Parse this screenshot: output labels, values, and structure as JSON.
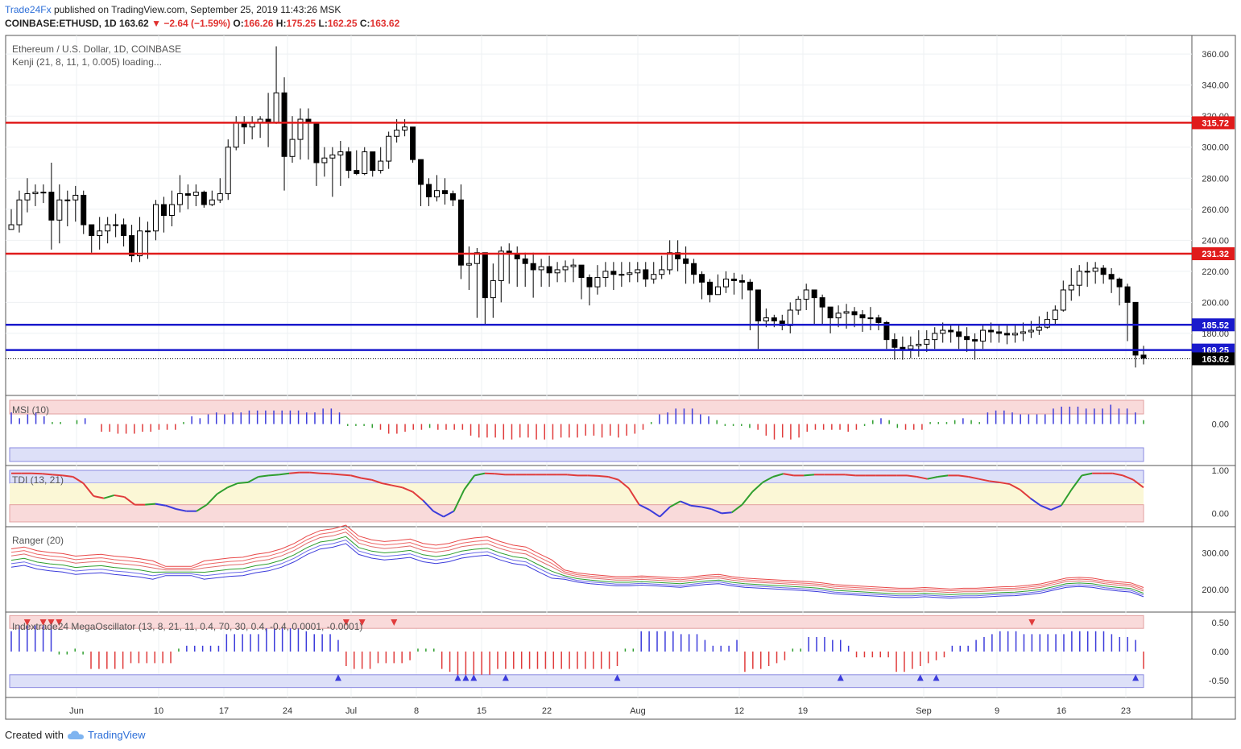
{
  "header": {
    "publisher": "Trade24Fx",
    "published_text": "published on TradingView.com, September 25, 2019 11:43:26 MSK",
    "symbol_line": "COINBASE:ETHUSD, 1D",
    "last": "163.62",
    "change": "−2.64 (−1.59%)",
    "o_label": "O:",
    "o": "166.26",
    "h_label": "H:",
    "h": "175.25",
    "l_label": "L:",
    "l": "162.25",
    "c_label": "C:",
    "c": "163.62"
  },
  "main_legend": {
    "title": "Ethereum / U.S. Dollar, 1D, COINBASE",
    "indicator": "Kenji (21, 8, 11, 1, 0.005) loading..."
  },
  "colors": {
    "red_line": "#e01b1b",
    "blue_line": "#1a1acc",
    "bull": "#ffffff",
    "bear": "#000000",
    "osc_blue": "#3b3bdb",
    "osc_red": "#e03b3b",
    "osc_green": "#2e9e2e",
    "zone_red": "#f9dada",
    "zone_blue": "#dde0f8",
    "zone_yellow": "#fbf7d6"
  },
  "footer": {
    "created_with": "Created with",
    "brand": "TradingView"
  },
  "chart_data": [
    {
      "type": "candlestick",
      "title": "Ethereum / U.S. Dollar, 1D, COINBASE",
      "y_ticks": [
        "360.00",
        "340.00",
        "320.00",
        "300.00",
        "280.00",
        "260.00",
        "240.00",
        "220.00",
        "200.00",
        "180.00"
      ],
      "ylim": [
        140,
        372
      ],
      "x_ticks": [
        "Jun",
        "10",
        "17",
        "24",
        "Jul",
        "8",
        "15",
        "22",
        "Aug",
        "12",
        "19",
        "Sep",
        "9",
        "16",
        "23"
      ],
      "levels": [
        {
          "value": 315.72,
          "label": "315.72",
          "color": "red"
        },
        {
          "value": 231.32,
          "label": "231.32",
          "color": "red"
        },
        {
          "value": 185.52,
          "label": "185.52",
          "color": "blue"
        },
        {
          "value": 169.25,
          "label": "169.25",
          "color": "blue"
        }
      ],
      "last_price": {
        "value": 163.62,
        "label": "163.62"
      },
      "series_close": [
        250,
        266,
        270,
        271,
        271,
        253,
        266,
        266,
        269,
        250,
        243,
        246,
        250,
        250,
        243,
        230,
        246,
        246,
        263,
        256,
        263,
        270,
        269,
        271,
        263,
        266,
        270,
        300,
        316,
        313,
        316,
        318,
        316,
        335,
        294,
        305,
        318,
        316,
        290,
        293,
        295,
        297,
        285,
        283,
        297,
        285,
        291,
        307,
        311,
        313,
        292,
        276,
        268,
        272,
        270,
        266,
        224,
        225,
        232,
        203,
        214,
        233,
        231,
        228,
        225,
        221,
        223,
        219,
        221,
        223,
        224,
        216,
        210,
        216,
        220,
        218,
        218,
        219,
        221,
        215,
        218,
        221,
        232,
        228,
        225,
        218,
        213,
        205,
        210,
        215,
        214,
        213,
        208,
        188,
        190,
        188,
        185,
        195,
        202,
        208,
        203,
        197,
        190,
        193,
        194,
        192,
        190,
        190,
        187,
        176,
        171,
        170,
        172,
        173,
        176,
        180,
        182,
        181,
        178,
        176,
        175,
        182,
        181,
        180,
        179,
        180,
        181,
        182,
        184,
        189,
        195,
        208,
        211,
        220,
        220,
        222,
        218,
        215,
        210,
        200,
        166,
        164
      ],
      "series_low": [
        248,
        245,
        258,
        262,
        264,
        234,
        238,
        249,
        252,
        244,
        232,
        234,
        238,
        242,
        236,
        226,
        226,
        228,
        240,
        245,
        249,
        258,
        260,
        262,
        261,
        262,
        264,
        266,
        298,
        302,
        305,
        306,
        300,
        315,
        272,
        290,
        292,
        292,
        275,
        281,
        268,
        275,
        280,
        282,
        282,
        281,
        283,
        286,
        303,
        307,
        290,
        262,
        262,
        265,
        263,
        262,
        215,
        208,
        190,
        186,
        190,
        200,
        212,
        210,
        210,
        203,
        210,
        210,
        213,
        213,
        213,
        202,
        198,
        205,
        210,
        208,
        210,
        213,
        213,
        210,
        212,
        215,
        218,
        220,
        212,
        212,
        202,
        200,
        205,
        206,
        205,
        202,
        182,
        170,
        184,
        184,
        182,
        180,
        192,
        195,
        185,
        185,
        180,
        184,
        183,
        184,
        181,
        182,
        182,
        170,
        163,
        163,
        164,
        165,
        168,
        170,
        174,
        174,
        170,
        168,
        163,
        170,
        174,
        174,
        173,
        174,
        175,
        177,
        179,
        183,
        185,
        194,
        201,
        204,
        210,
        212,
        212,
        206,
        198,
        175,
        158,
        160
      ],
      "series_high": [
        260,
        272,
        280,
        276,
        276,
        290,
        276,
        272,
        275,
        272,
        246,
        255,
        255,
        257,
        254,
        250,
        255,
        252,
        266,
        268,
        272,
        282,
        276,
        276,
        272,
        272,
        280,
        305,
        320,
        320,
        320,
        320,
        335,
        365,
        345,
        320,
        325,
        325,
        305,
        300,
        300,
        304,
        300,
        298,
        300,
        294,
        300,
        310,
        318,
        318,
        312,
        288,
        280,
        282,
        280,
        272,
        276,
        236,
        235,
        232,
        225,
        236,
        238,
        236,
        232,
        232,
        228,
        230,
        226,
        227,
        228,
        224,
        218,
        224,
        226,
        226,
        226,
        226,
        226,
        226,
        226,
        230,
        240,
        240,
        236,
        228,
        220,
        215,
        218,
        220,
        219,
        218,
        215,
        202,
        196,
        192,
        192,
        200,
        204,
        212,
        207,
        205,
        196,
        198,
        199,
        197,
        195,
        197,
        192,
        188,
        180,
        178,
        178,
        182,
        182,
        184,
        187,
        186,
        186,
        184,
        180,
        186,
        187,
        186,
        186,
        186,
        187,
        188,
        191,
        194,
        198,
        214,
        222,
        224,
        226,
        226,
        224,
        222,
        216,
        212,
        175,
        172
      ]
    },
    {
      "type": "bar",
      "title": "MSI (10)",
      "y_ticks": [
        "0.00"
      ],
      "values": [
        0.6,
        0.3,
        0.5,
        0.6,
        0.4,
        0.1,
        0.1,
        0.0,
        0.2,
        0.3,
        0.0,
        -0.4,
        -0.4,
        -0.5,
        -0.5,
        -0.5,
        -0.4,
        -0.4,
        -0.3,
        -0.3,
        -0.3,
        0.1,
        0.4,
        0.3,
        0.5,
        0.6,
        0.5,
        0.6,
        0.6,
        0.7,
        0.7,
        0.7,
        0.7,
        0.7,
        0.7,
        0.7,
        0.6,
        0.6,
        0.8,
        0.8,
        0.6,
        -0.1,
        -0.1,
        -0.1,
        -0.2,
        -0.3,
        -0.5,
        -0.5,
        -0.4,
        -0.3,
        -0.3,
        -0.2,
        -0.3,
        -0.3,
        -0.3,
        -0.3,
        -0.6,
        -0.7,
        -0.7,
        -0.7,
        -0.8,
        -0.8,
        -0.7,
        -0.7,
        -0.8,
        -0.8,
        -0.8,
        -0.7,
        -0.7,
        -0.7,
        -0.6,
        -0.6,
        -0.7,
        -0.6,
        -0.7,
        -0.6,
        -0.5,
        -0.3,
        0.1,
        0.5,
        0.6,
        0.8,
        0.8,
        0.8,
        0.5,
        0.4,
        0.2,
        -0.1,
        -0.1,
        -0.1,
        -0.2,
        -0.3,
        -0.6,
        -0.8,
        -0.7,
        -0.8,
        -0.7,
        -0.4,
        -0.3,
        -0.3,
        -0.3,
        -0.3,
        -0.4,
        -0.3,
        -0.1,
        0.2,
        0.3,
        0.2,
        -0.2,
        -0.3,
        -0.3,
        -0.3,
        0.1,
        0.1,
        0.1,
        0.2,
        0.3,
        0.2,
        0.1,
        0.6,
        0.7,
        0.7,
        0.6,
        0.5,
        0.5,
        0.5,
        0.5,
        0.8,
        0.9,
        0.9,
        0.9,
        0.8,
        0.8,
        0.8,
        1.0,
        0.8,
        0.8,
        0.6,
        0.2
      ],
      "color_map": "positive blue, negative red, small green"
    },
    {
      "type": "line",
      "title": "TDI (13, 21)",
      "y_ticks": [
        "1.00",
        "0.00"
      ],
      "values": [
        0.93,
        0.93,
        0.93,
        0.92,
        0.9,
        0.88,
        0.85,
        0.7,
        0.4,
        0.35,
        0.42,
        0.38,
        0.2,
        0.2,
        0.22,
        0.18,
        0.1,
        0.05,
        0.05,
        0.2,
        0.45,
        0.6,
        0.7,
        0.72,
        0.85,
        0.88,
        0.9,
        0.93,
        0.95,
        0.95,
        0.93,
        0.92,
        0.9,
        0.88,
        0.82,
        0.78,
        0.7,
        0.65,
        0.6,
        0.5,
        0.3,
        0.05,
        -0.08,
        0.05,
        0.55,
        0.88,
        0.93,
        0.92,
        0.9,
        0.9,
        0.9,
        0.9,
        0.9,
        0.9,
        0.9,
        0.88,
        0.88,
        0.87,
        0.85,
        0.78,
        0.58,
        0.2,
        0.08,
        -0.08,
        0.15,
        0.28,
        0.18,
        0.15,
        0.1,
        0.0,
        0.02,
        0.2,
        0.5,
        0.72,
        0.85,
        0.92,
        0.88,
        0.88,
        0.9,
        0.9,
        0.9,
        0.9,
        0.88,
        0.88,
        0.88,
        0.88,
        0.88,
        0.88,
        0.85,
        0.8,
        0.85,
        0.88,
        0.88,
        0.85,
        0.8,
        0.75,
        0.72,
        0.68,
        0.55,
        0.35,
        0.18,
        0.08,
        0.18,
        0.55,
        0.88,
        0.93,
        0.93,
        0.93,
        0.88,
        0.78,
        0.6
      ],
      "color_map": "rising green, falling red, low blue"
    },
    {
      "type": "line",
      "title": "Ranger (20)",
      "y_ticks": [
        "300.00",
        "200.00"
      ],
      "values": [
        285,
        290,
        280,
        275,
        272,
        265,
        268,
        270,
        265,
        262,
        258,
        252,
        250,
        250,
        250,
        252,
        256,
        260,
        262,
        270,
        275,
        285,
        300,
        320,
        335,
        340,
        350,
        320,
        310,
        305,
        308,
        312,
        300,
        295,
        300,
        310,
        315,
        318,
        305,
        295,
        290,
        272,
        255,
        240,
        232,
        228,
        225,
        222,
        222,
        224,
        222,
        220,
        218,
        222,
        226,
        228,
        222,
        218,
        216,
        214,
        212,
        210,
        208,
        205,
        200,
        198,
        196,
        194,
        192,
        190,
        190,
        192,
        190,
        188,
        190,
        190,
        192,
        194,
        195,
        198,
        202,
        210,
        218,
        220,
        218,
        212,
        208,
        205,
        192
      ],
      "series_count": 6,
      "color_map": "upper red bands, middle green, lower blue bands"
    },
    {
      "type": "bar",
      "title": "Indextrade24 MegaOscillator (13, 8, 21, 11, 0.4, 70, 30, 0.4, -0.4, 0.0001, -0.0001)",
      "y_ticks": [
        "0.50",
        "0.00",
        "-0.50"
      ],
      "values": [
        0.35,
        0.45,
        0.45,
        0.45,
        0.45,
        0.45,
        -0.05,
        -0.05,
        0.05,
        -0.05,
        -0.3,
        -0.3,
        -0.3,
        -0.3,
        -0.3,
        -0.2,
        -0.2,
        -0.2,
        -0.2,
        -0.2,
        -0.2,
        0.05,
        0.1,
        0.1,
        0.1,
        0.1,
        0.1,
        0.3,
        0.3,
        0.3,
        0.3,
        0.3,
        0.4,
        0.4,
        0.4,
        0.4,
        0.4,
        0.35,
        0.3,
        0.3,
        0.3,
        0.2,
        -0.25,
        -0.3,
        -0.3,
        -0.3,
        -0.2,
        -0.2,
        -0.2,
        -0.2,
        -0.15,
        0.05,
        0.05,
        0.05,
        -0.3,
        -0.35,
        -0.4,
        -0.4,
        -0.4,
        -0.4,
        -0.4,
        -0.3,
        -0.3,
        -0.3,
        -0.3,
        -0.3,
        -0.3,
        -0.3,
        -0.3,
        -0.3,
        -0.3,
        -0.3,
        -0.3,
        -0.3,
        -0.3,
        -0.3,
        -0.25,
        0.05,
        0.05,
        0.35,
        0.35,
        0.35,
        0.35,
        0.35,
        0.3,
        0.3,
        0.3,
        0.2,
        0.1,
        0.1,
        0.1,
        0.2,
        -0.35,
        -0.3,
        -0.3,
        -0.25,
        -0.2,
        -0.15,
        0.05,
        0.05,
        0.25,
        0.25,
        0.25,
        0.2,
        0.2,
        0.1,
        -0.1,
        -0.1,
        -0.1,
        -0.1,
        -0.1,
        -0.35,
        -0.35,
        -0.3,
        -0.25,
        -0.2,
        -0.15,
        -0.1,
        0.1,
        0.1,
        0.1,
        0.2,
        0.25,
        0.3,
        0.35,
        0.35,
        0.35,
        0.3,
        0.3,
        0.3,
        0.3,
        0.3,
        0.3,
        0.35,
        0.35,
        0.35,
        0.35,
        0.35,
        0.3,
        0.25,
        0.25,
        0.2,
        -0.3
      ],
      "color_map": "positive blue, negative red, small green"
    }
  ]
}
